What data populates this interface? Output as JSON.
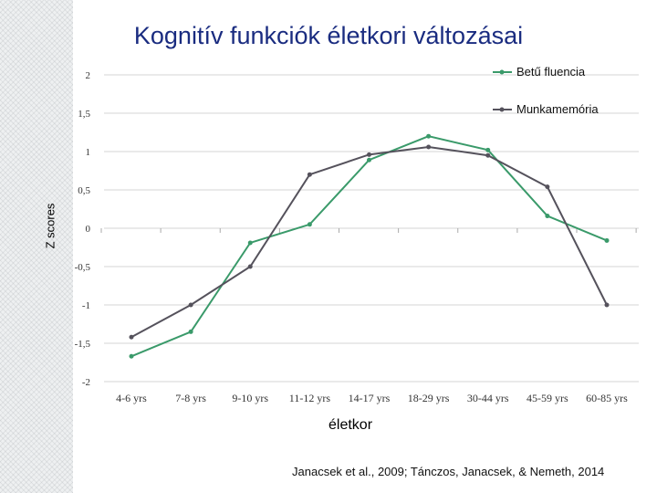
{
  "slide": {
    "title": "Kognitív funkciók életkori változásai",
    "citation": "Janacsek et al., 2009; Tánczos, Janacsek, & Nemeth, 2014"
  },
  "chart_data": {
    "type": "line",
    "xlabel": "életkor",
    "ylabel": "Z scores",
    "ylim": [
      -2,
      2
    ],
    "yticks": [
      2,
      1.5,
      1,
      0.5,
      0,
      -0.5,
      -1,
      -1.5,
      -2
    ],
    "ytick_labels": [
      "2",
      "1,5",
      "1",
      "0,5",
      "0",
      "-0,5",
      "-1",
      "-1,5",
      "-2"
    ],
    "categories": [
      "4-6 yrs",
      "7-8 yrs",
      "9-10 yrs",
      "11-12 yrs",
      "14-17 yrs",
      "18-29 yrs",
      "30-44 yrs",
      "45-59 yrs",
      "60-85 yrs"
    ],
    "grid": "horizontal",
    "legend_position": "top-right",
    "series": [
      {
        "name": "Betű fluencia",
        "color": "#3a9a6a",
        "values": [
          -1.67,
          -1.35,
          -0.19,
          0.05,
          0.89,
          1.2,
          1.02,
          0.16,
          -0.16
        ]
      },
      {
        "name": "Munkamemória",
        "color": "#55525c",
        "values": [
          -1.42,
          -1.0,
          -0.5,
          0.7,
          0.96,
          1.06,
          0.95,
          0.54,
          -1.0
        ]
      }
    ]
  }
}
